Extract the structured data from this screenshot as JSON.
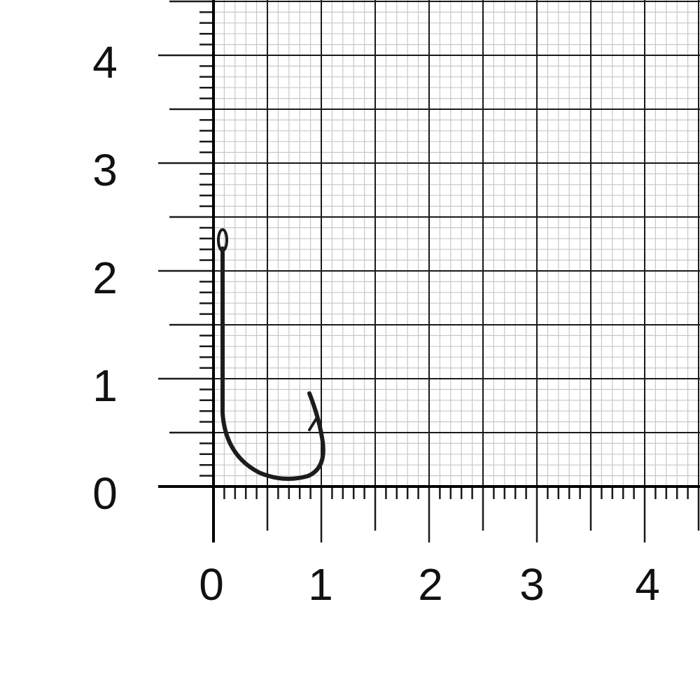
{
  "y_axis": {
    "labels": [
      "0",
      "1",
      "2",
      "3",
      "4"
    ]
  },
  "x_axis": {
    "labels": [
      "0",
      "1",
      "2",
      "3",
      "4"
    ]
  },
  "colors": {
    "grid_major": "#1a1a1a",
    "grid_minor": "#c8c8c8",
    "hook": "#1c1c1c",
    "background": "#ffffff"
  },
  "object": {
    "icon": "fishing-hook-icon"
  }
}
